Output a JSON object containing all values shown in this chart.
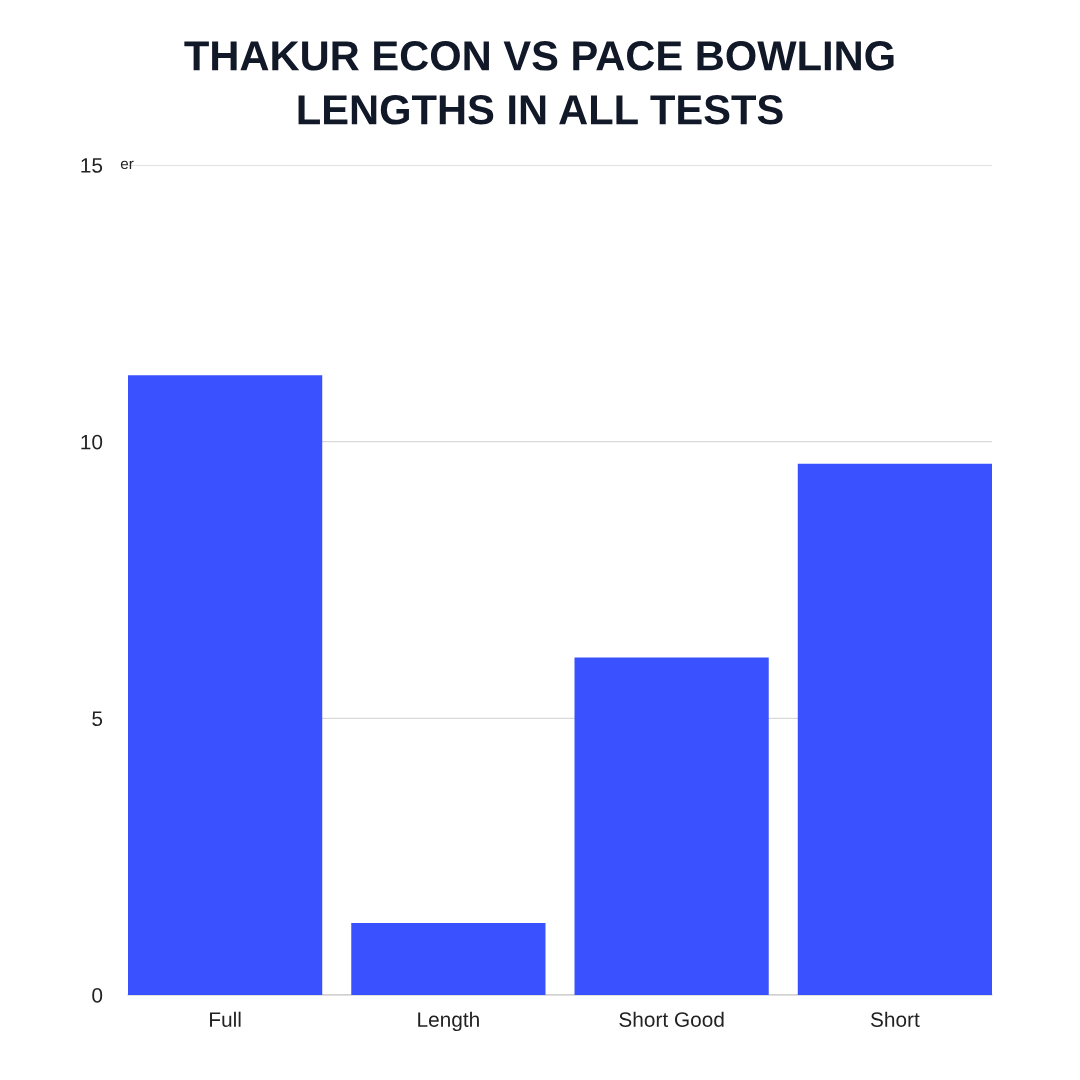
{
  "chart_data": {
    "type": "bar",
    "title": "THAKUR ECON VS PACE BOWLING\nLENGTHS IN ALL TESTS",
    "ylabel": "er",
    "categories": [
      "Full",
      "Length",
      "Short Good",
      "Short"
    ],
    "values": [
      11.2,
      1.3,
      6.1,
      9.6
    ],
    "color": "#3a51ff",
    "ylim": [
      0,
      15
    ],
    "yticks": [
      0,
      5,
      10,
      15
    ],
    "grid": "y"
  }
}
